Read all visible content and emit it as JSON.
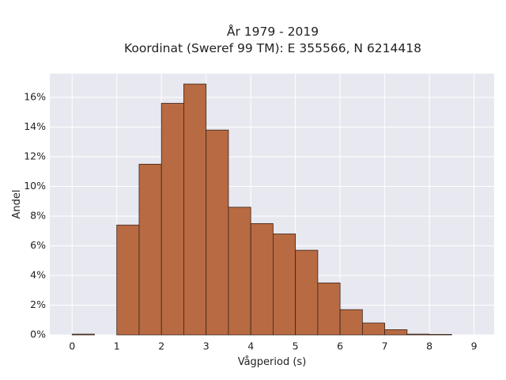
{
  "chart_data": {
    "type": "bar",
    "title_line1": "År 1979 - 2019",
    "title_line2": "Koordinat (Sweref 99 TM): E 355566, N 6214418",
    "xlabel": "Vågperiod (s)",
    "ylabel": "Andel",
    "bin_width": 0.5,
    "x": [
      0,
      0.5,
      1,
      1.5,
      2,
      2.5,
      3,
      3.5,
      4,
      4.5,
      5,
      5.5,
      6,
      6.5,
      7,
      7.5,
      8
    ],
    "values": [
      0.05,
      0,
      7.4,
      11.5,
      15.6,
      16.9,
      13.8,
      8.6,
      7.5,
      6.8,
      5.7,
      3.5,
      1.7,
      0.8,
      0.35,
      0.05,
      0.03
    ],
    "xlim": [
      -0.5,
      9.45
    ],
    "ylim": [
      0,
      17.6
    ],
    "x_ticks": [
      0,
      1,
      2,
      3,
      4,
      5,
      6,
      7,
      8,
      9
    ],
    "x_tick_labels": [
      "0",
      "1",
      "2",
      "3",
      "4",
      "5",
      "6",
      "7",
      "8",
      "9"
    ],
    "y_ticks": [
      0,
      2,
      4,
      6,
      8,
      10,
      12,
      14,
      16
    ],
    "y_tick_labels": [
      "0%",
      "2%",
      "4%",
      "6%",
      "8%",
      "10%",
      "12%",
      "14%",
      "16%"
    ],
    "grid": true,
    "colors": {
      "bar": "#b86a42",
      "bar_edge": "#3a2418",
      "plot_bg": "#e8e8f0",
      "grid": "#ffffff"
    }
  }
}
